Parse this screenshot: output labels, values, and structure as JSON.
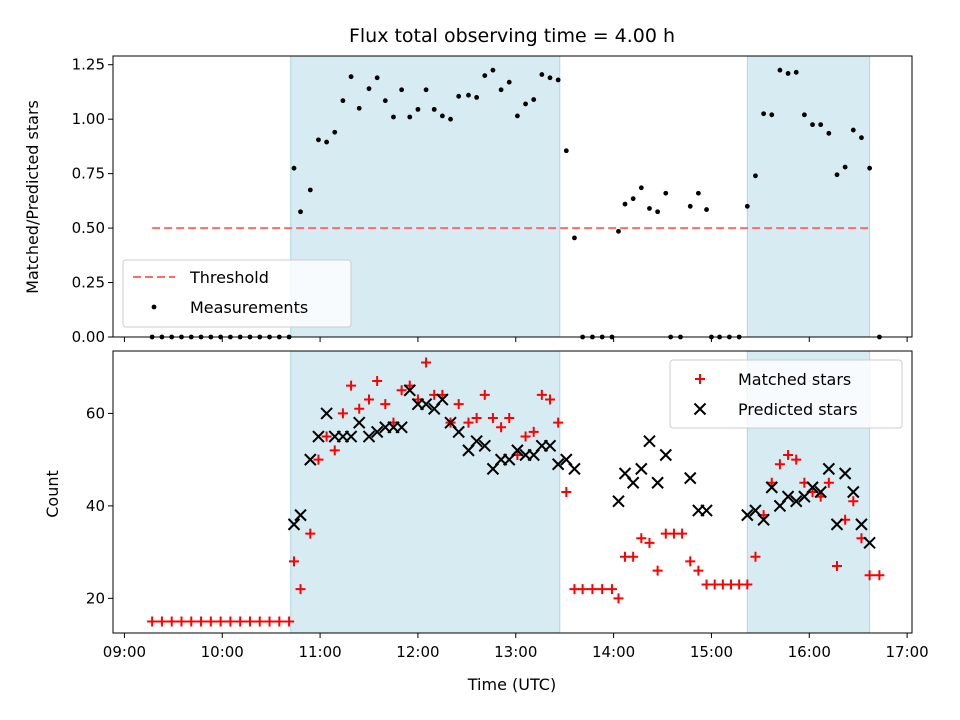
{
  "chart_data": [
    {
      "type": "scatter",
      "title": "Flux total observing time = 4.00 h",
      "xlabel": "",
      "ylabel": "Matched/Predicted stars",
      "ylim": [
        0,
        1.29
      ],
      "yticks": [
        0.0,
        0.25,
        0.5,
        0.75,
        1.0,
        1.25
      ],
      "ytick_labels": [
        "0.00",
        "0.25",
        "0.50",
        "0.75",
        "1.00",
        "1.25"
      ],
      "xlim": [
        "08:53",
        "17:03"
      ],
      "shaded_intervals": [
        [
          "10:42",
          "13:27"
        ],
        [
          "15:22",
          "16:37"
        ]
      ],
      "threshold": {
        "label": "Threshold",
        "value": 0.5,
        "x_range": [
          "09:17",
          "16:37"
        ],
        "color": "#ff6b6b"
      },
      "legend": {
        "placement": "lower-left",
        "entries": [
          "Threshold",
          "Measurements"
        ]
      },
      "series": [
        {
          "name": "Measurements",
          "color": "#000000",
          "marker": "dot",
          "points": [
            [
              "09:17",
              0
            ],
            [
              "09:23",
              0
            ],
            [
              "09:29",
              0
            ],
            [
              "09:35",
              0
            ],
            [
              "09:41",
              0
            ],
            [
              "09:47",
              0
            ],
            [
              "09:53",
              0
            ],
            [
              "09:59",
              0
            ],
            [
              "10:05",
              0
            ],
            [
              "10:11",
              0
            ],
            [
              "10:17",
              0
            ],
            [
              "10:23",
              0
            ],
            [
              "10:29",
              0
            ],
            [
              "10:35",
              0
            ],
            [
              "10:41",
              0
            ],
            [
              "10:44",
              0.775
            ],
            [
              "10:48",
              0.575
            ],
            [
              "10:54",
              0.675
            ],
            [
              "10:59",
              0.905
            ],
            [
              "11:04",
              0.895
            ],
            [
              "11:09",
              0.94
            ],
            [
              "11:14",
              1.085
            ],
            [
              "11:19",
              1.195
            ],
            [
              "11:24",
              1.05
            ],
            [
              "11:30",
              1.14
            ],
            [
              "11:35",
              1.19
            ],
            [
              "11:40",
              1.085
            ],
            [
              "11:45",
              1.01
            ],
            [
              "11:50",
              1.135
            ],
            [
              "11:55",
              1.01
            ],
            [
              "12:00",
              1.045
            ],
            [
              "12:05",
              1.135
            ],
            [
              "12:10",
              1.045
            ],
            [
              "12:15",
              1.015
            ],
            [
              "12:20",
              1.0
            ],
            [
              "12:25",
              1.105
            ],
            [
              "12:31",
              1.11
            ],
            [
              "12:36",
              1.1
            ],
            [
              "12:41",
              1.2
            ],
            [
              "12:46",
              1.225
            ],
            [
              "12:51",
              1.135
            ],
            [
              "12:56",
              1.17
            ],
            [
              "13:01",
              1.015
            ],
            [
              "13:06",
              1.07
            ],
            [
              "13:11",
              1.09
            ],
            [
              "13:16",
              1.205
            ],
            [
              "13:21",
              1.19
            ],
            [
              "13:26",
              1.18
            ],
            [
              "13:31",
              0.855
            ],
            [
              "13:36",
              0.455
            ],
            [
              "13:41",
              0
            ],
            [
              "13:47",
              0
            ],
            [
              "13:53",
              0
            ],
            [
              "13:59",
              0
            ],
            [
              "14:03",
              0.485
            ],
            [
              "14:07",
              0.61
            ],
            [
              "14:12",
              0.635
            ],
            [
              "14:17",
              0.685
            ],
            [
              "14:22",
              0.59
            ],
            [
              "14:27",
              0.575
            ],
            [
              "14:32",
              0.66
            ],
            [
              "14:35",
              0
            ],
            [
              "14:41",
              0
            ],
            [
              "14:47",
              0.6
            ],
            [
              "14:52",
              0.66
            ],
            [
              "14:57",
              0.585
            ],
            [
              "15:00",
              0
            ],
            [
              "15:05",
              0
            ],
            [
              "15:11",
              0
            ],
            [
              "15:17",
              0
            ],
            [
              "15:22",
              0.6
            ],
            [
              "15:27",
              0.74
            ],
            [
              "15:32",
              1.025
            ],
            [
              "15:37",
              1.02
            ],
            [
              "15:42",
              1.225
            ],
            [
              "15:47",
              1.21
            ],
            [
              "15:52",
              1.215
            ],
            [
              "15:57",
              1.02
            ],
            [
              "16:02",
              0.975
            ],
            [
              "16:07",
              0.975
            ],
            [
              "16:12",
              0.935
            ],
            [
              "16:17",
              0.745
            ],
            [
              "16:22",
              0.78
            ],
            [
              "16:27",
              0.95
            ],
            [
              "16:32",
              0.915
            ],
            [
              "16:37",
              0.775
            ],
            [
              "16:43",
              0
            ]
          ]
        }
      ]
    },
    {
      "type": "scatter",
      "title": "",
      "xlabel": "Time (UTC)",
      "ylabel": "Count",
      "ylim": [
        12.5,
        73.5
      ],
      "yticks": [
        20,
        40,
        60
      ],
      "ytick_labels": [
        "20",
        "40",
        "60"
      ],
      "xticks": [
        "09:00",
        "10:00",
        "11:00",
        "12:00",
        "13:00",
        "14:00",
        "15:00",
        "16:00",
        "17:00"
      ],
      "xtick_labels": [
        "09:00",
        "10:00",
        "11:00",
        "12:00",
        "13:00",
        "14:00",
        "15:00",
        "16:00",
        "17:00"
      ],
      "xlim": [
        "08:53",
        "17:03"
      ],
      "shaded_intervals": [
        [
          "10:42",
          "13:27"
        ],
        [
          "15:22",
          "16:37"
        ]
      ],
      "legend": {
        "placement": "top-right",
        "entries": [
          "Matched stars",
          "Predicted stars"
        ]
      },
      "series": [
        {
          "name": "Matched stars",
          "color": "#ff0000",
          "marker": "plus",
          "points": [
            [
              "09:17",
              15
            ],
            [
              "09:23",
              15
            ],
            [
              "09:29",
              15
            ],
            [
              "09:35",
              15
            ],
            [
              "09:41",
              15
            ],
            [
              "09:47",
              15
            ],
            [
              "09:53",
              15
            ],
            [
              "09:59",
              15
            ],
            [
              "10:05",
              15
            ],
            [
              "10:11",
              15
            ],
            [
              "10:17",
              15
            ],
            [
              "10:23",
              15
            ],
            [
              "10:29",
              15
            ],
            [
              "10:35",
              15
            ],
            [
              "10:41",
              15
            ],
            [
              "10:44",
              28
            ],
            [
              "10:48",
              22
            ],
            [
              "10:54",
              34
            ],
            [
              "10:59",
              50
            ],
            [
              "11:04",
              55
            ],
            [
              "11:09",
              52
            ],
            [
              "11:14",
              60
            ],
            [
              "11:19",
              66
            ],
            [
              "11:24",
              61
            ],
            [
              "11:30",
              63
            ],
            [
              "11:35",
              67
            ],
            [
              "11:40",
              62
            ],
            [
              "11:45",
              58
            ],
            [
              "11:50",
              65
            ],
            [
              "11:55",
              66
            ],
            [
              "12:00",
              63
            ],
            [
              "12:05",
              71
            ],
            [
              "12:10",
              64
            ],
            [
              "12:15",
              64
            ],
            [
              "12:20",
              58
            ],
            [
              "12:25",
              62
            ],
            [
              "12:31",
              58
            ],
            [
              "12:36",
              59
            ],
            [
              "12:41",
              64
            ],
            [
              "12:46",
              59
            ],
            [
              "12:51",
              57
            ],
            [
              "12:56",
              59
            ],
            [
              "13:01",
              51
            ],
            [
              "13:06",
              55
            ],
            [
              "13:11",
              56
            ],
            [
              "13:16",
              64
            ],
            [
              "13:21",
              63
            ],
            [
              "13:26",
              58
            ],
            [
              "13:31",
              43
            ],
            [
              "13:36",
              22
            ],
            [
              "13:41",
              22
            ],
            [
              "13:47",
              22
            ],
            [
              "13:53",
              22
            ],
            [
              "13:59",
              22
            ],
            [
              "14:03",
              20
            ],
            [
              "14:07",
              29
            ],
            [
              "14:12",
              29
            ],
            [
              "14:17",
              33
            ],
            [
              "14:22",
              32
            ],
            [
              "14:27",
              26
            ],
            [
              "14:32",
              34
            ],
            [
              "14:37",
              34
            ],
            [
              "14:42",
              34
            ],
            [
              "14:47",
              28
            ],
            [
              "14:52",
              26
            ],
            [
              "14:57",
              23
            ],
            [
              "15:02",
              23
            ],
            [
              "15:07",
              23
            ],
            [
              "15:12",
              23
            ],
            [
              "15:17",
              23
            ],
            [
              "15:22",
              23
            ],
            [
              "15:27",
              29
            ],
            [
              "15:32",
              38
            ],
            [
              "15:37",
              45
            ],
            [
              "15:42",
              49
            ],
            [
              "15:47",
              51
            ],
            [
              "15:52",
              50
            ],
            [
              "15:57",
              45
            ],
            [
              "16:02",
              43
            ],
            [
              "16:07",
              42
            ],
            [
              "16:12",
              45
            ],
            [
              "16:17",
              27
            ],
            [
              "16:22",
              37
            ],
            [
              "16:27",
              41
            ],
            [
              "16:32",
              33
            ],
            [
              "16:37",
              25
            ],
            [
              "16:43",
              25
            ]
          ]
        },
        {
          "name": "Predicted stars",
          "color": "#000000",
          "marker": "x",
          "points": [
            [
              "10:44",
              36
            ],
            [
              "10:48",
              38
            ],
            [
              "10:54",
              50
            ],
            [
              "10:59",
              55
            ],
            [
              "11:04",
              60
            ],
            [
              "11:09",
              55
            ],
            [
              "11:14",
              55
            ],
            [
              "11:19",
              55
            ],
            [
              "11:24",
              58
            ],
            [
              "11:30",
              55
            ],
            [
              "11:35",
              56
            ],
            [
              "11:40",
              57
            ],
            [
              "11:45",
              57
            ],
            [
              "11:50",
              57
            ],
            [
              "11:55",
              65
            ],
            [
              "12:00",
              62
            ],
            [
              "12:05",
              62
            ],
            [
              "12:10",
              61
            ],
            [
              "12:15",
              63
            ],
            [
              "12:20",
              58
            ],
            [
              "12:25",
              56
            ],
            [
              "12:31",
              52
            ],
            [
              "12:36",
              54
            ],
            [
              "12:41",
              53
            ],
            [
              "12:46",
              48
            ],
            [
              "12:51",
              50
            ],
            [
              "12:56",
              50
            ],
            [
              "13:01",
              52
            ],
            [
              "13:06",
              51
            ],
            [
              "13:11",
              51
            ],
            [
              "13:16",
              53
            ],
            [
              "13:21",
              53
            ],
            [
              "13:26",
              49
            ],
            [
              "13:31",
              50
            ],
            [
              "13:36",
              48
            ],
            [
              "14:03",
              41
            ],
            [
              "14:07",
              47
            ],
            [
              "14:12",
              45
            ],
            [
              "14:17",
              48
            ],
            [
              "14:22",
              54
            ],
            [
              "14:27",
              45
            ],
            [
              "14:32",
              51
            ],
            [
              "14:47",
              46
            ],
            [
              "14:52",
              39
            ],
            [
              "14:57",
              39
            ],
            [
              "15:22",
              38
            ],
            [
              "15:27",
              39
            ],
            [
              "15:32",
              37
            ],
            [
              "15:37",
              44
            ],
            [
              "15:42",
              40
            ],
            [
              "15:47",
              42
            ],
            [
              "15:52",
              41
            ],
            [
              "15:57",
              42
            ],
            [
              "16:02",
              44
            ],
            [
              "16:07",
              43
            ],
            [
              "16:12",
              48
            ],
            [
              "16:17",
              36
            ],
            [
              "16:22",
              47
            ],
            [
              "16:27",
              43
            ],
            [
              "16:32",
              36
            ],
            [
              "16:37",
              32
            ]
          ]
        }
      ]
    }
  ]
}
